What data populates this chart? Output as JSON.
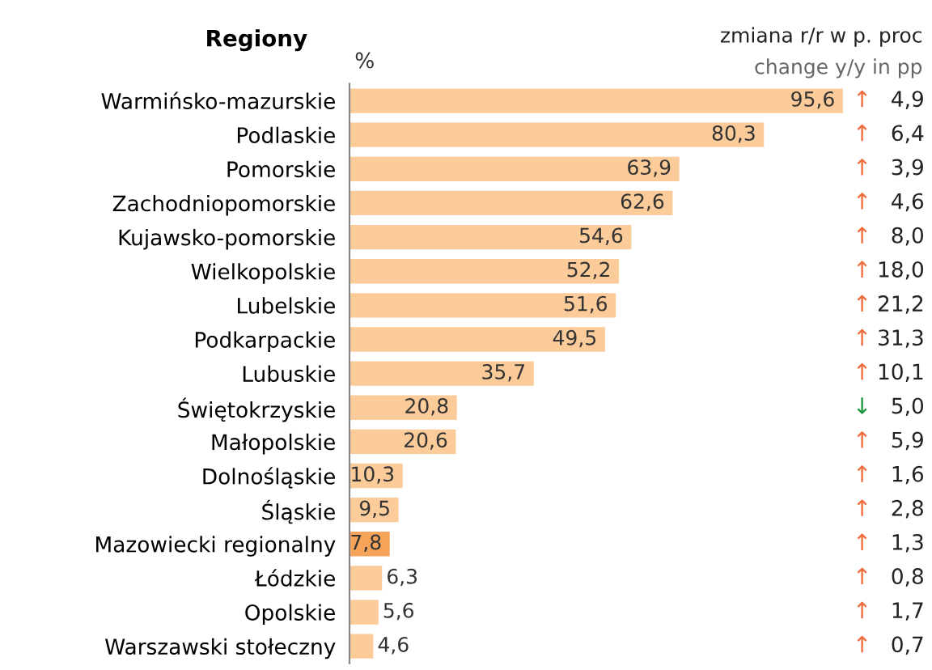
{
  "chart_data": {
    "type": "bar",
    "orientation": "horizontal",
    "ylabel": "Regiony",
    "xlabel": "%",
    "categories": [
      "Warmińsko-mazurskie",
      "Podlaskie",
      "Pomorskie",
      "Zachodniopomorskie",
      "Kujawsko-pomorskie",
      "Wielkopolskie",
      "Lubelskie",
      "Podkarpackie",
      "Lubuskie",
      "Świętokrzyskie",
      "Małopolskie",
      "Dolnośląskie",
      "Śląskie",
      "Mazowiecki regionalny",
      "Łódzkie",
      "Opolskie",
      "Warszawski stołeczny"
    ],
    "values": [
      95.6,
      80.3,
      63.9,
      62.6,
      54.6,
      52.2,
      51.6,
      49.5,
      35.7,
      20.8,
      20.6,
      10.3,
      9.5,
      7.8,
      6.3,
      5.6,
      4.6
    ],
    "colors": [
      "#fccb9a",
      "#fccb9a",
      "#fccb9a",
      "#fccb9a",
      "#fccb9a",
      "#fccb9a",
      "#fccb9a",
      "#fccb9a",
      "#fccb9a",
      "#fccb9a",
      "#fccb9a",
      "#fccb9a",
      "#fccb9a",
      "#f6a45a",
      "#fccb9a",
      "#fccb9a",
      "#fccb9a"
    ],
    "value_labels": [
      "95,6",
      "80,3",
      "63,9",
      "62,6",
      "54,6",
      "52,2",
      "51,6",
      "49,5",
      "35,7",
      "20,8",
      "20,6",
      "10,3",
      "9,5",
      "7,8",
      "6,3",
      "5,6",
      "4,6"
    ],
    "annotations": [
      "zmiana r/r w p. proc",
      "change y/y in pp",
      "↑ 4,9",
      "↑ 6,4",
      "↑ 3,9",
      "↑ 4,6",
      "↑ 8,0",
      "↑ 18,0",
      "↑ 21,2",
      "↑ 31,3",
      "↑ 10,1",
      "↓ 5,0",
      "↑ 5,9",
      "↑ 1,6",
      "↑ 2,8",
      "↑ 1,3",
      "↑ 0,8",
      "↑ 1,7",
      "↑ 0,7"
    ]
  }
}
